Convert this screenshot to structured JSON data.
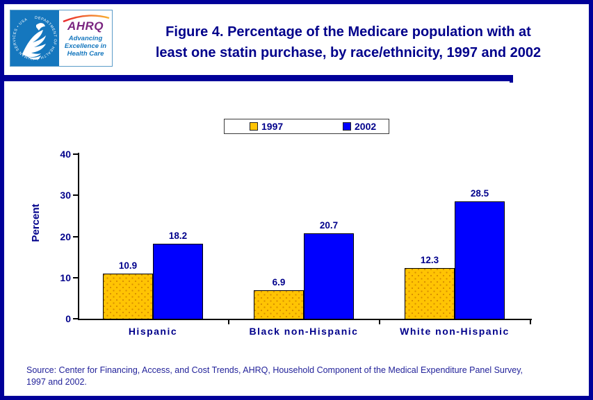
{
  "page": {
    "border_color": "#000099",
    "background_color": "#FFFFFF"
  },
  "header": {
    "logo": {
      "hhs_ring_text": "DEPARTMENT OF HEALTH & HUMAN SERVICES • USA",
      "hhs_blue": "#1577BE",
      "ahrq_acronym": "AHRQ",
      "ahrq_purple": "#7A2580",
      "tagline_lines": [
        "Advancing",
        "Excellence in",
        "Health Care"
      ],
      "tagline_color": "#1577BE",
      "swoosh_colors": [
        "#E8262D",
        "#F9B233"
      ]
    },
    "title_lines": [
      "Figure 4. Percentage of the Medicare population with at",
      "least one statin purchase, by race/ethnicity, 1997 and 2002"
    ],
    "title_color": "#00008B"
  },
  "chart_data": {
    "type": "bar",
    "title": "Figure 4. Percentage of the Medicare population with at least one statin purchase, by race/ethnicity, 1997 and 2002",
    "categories": [
      "Hispanic",
      "Black non-Hispanic",
      "White non-Hispanic"
    ],
    "series": [
      {
        "name": "1997",
        "color": "#FFC403",
        "pattern": "speckled",
        "values": [
          10.9,
          6.9,
          12.3
        ]
      },
      {
        "name": "2002",
        "color": "#0000FF",
        "pattern": "solid",
        "values": [
          18.2,
          20.7,
          28.5
        ]
      }
    ],
    "xlabel": "",
    "ylabel": "Percent",
    "ylim": [
      0,
      40
    ],
    "yticks": [
      0,
      10,
      20,
      30,
      40
    ],
    "grid": false,
    "legend_position": "top-center",
    "data_labels": true,
    "label_color": "#00008B"
  },
  "source_note": {
    "lines": [
      "Source: Center for Financing, Access, and Cost Trends, AHRQ, Household Component of the Medical Expenditure Panel Survey,",
      "1997 and 2002."
    ]
  }
}
